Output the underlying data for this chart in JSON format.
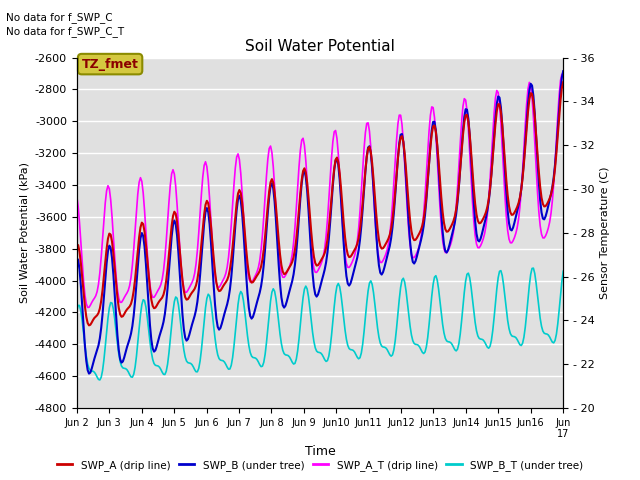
{
  "title": "Soil Water Potential",
  "ylabel_left": "Soil Water Potential (kPa)",
  "ylabel_right": "Sensor Temperature (C)",
  "xlabel": "Time",
  "ylim_left": [
    -4800,
    -2600
  ],
  "ylim_right": [
    20,
    36
  ],
  "yticks_left": [
    -4800,
    -4600,
    -4400,
    -4200,
    -4000,
    -3800,
    -3600,
    -3400,
    -3200,
    -3000,
    -2800,
    -2600
  ],
  "yticks_right": [
    20,
    22,
    24,
    26,
    28,
    30,
    32,
    34,
    36
  ],
  "no_data_text": [
    "No data for f_SWP_C",
    "No data for f_SWP_C_T"
  ],
  "tz_label": "TZ_fmet",
  "background_color": "#e0e0e0",
  "line_colors": {
    "SWP_A": "#cc0000",
    "SWP_B": "#0000cc",
    "SWP_A_T": "#ff00ff",
    "SWP_B_T": "#00cccc"
  },
  "legend_labels": [
    "SWP_A (drip line)",
    "SWP_B (under tree)",
    "SWP_A_T (drip line)",
    "SWP_B_T (under tree)"
  ]
}
